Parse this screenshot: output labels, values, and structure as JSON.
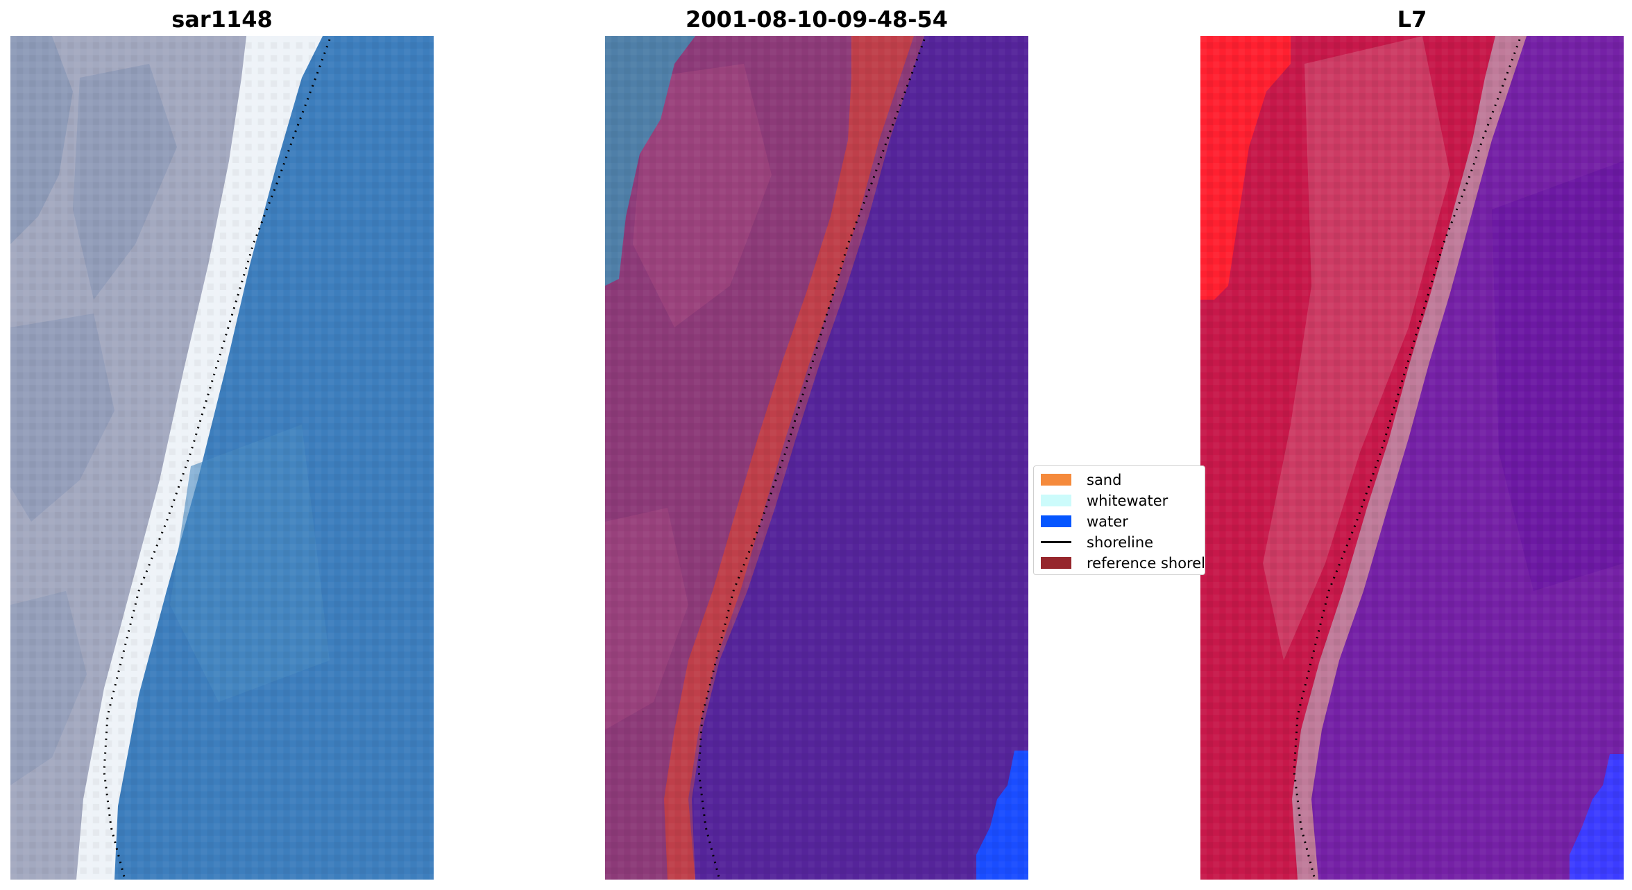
{
  "panels": [
    {
      "title": "sar1148",
      "colors": {
        "land": "#a3a9c0",
        "land_dark": "#7e8fb1",
        "whitewater": "#eef3f8",
        "water": "#3d7ebd",
        "water_tint": "#4a8ac2"
      }
    },
    {
      "title": "2001-08-10-09-48-54",
      "colors": {
        "land": "#8c3a78",
        "land_light": "#a3477f",
        "sand_class": "#bf3f4a",
        "water_class": "#55249a",
        "water_edge": "#1a4dff",
        "corner": "#4f7fa8"
      }
    },
    {
      "title": "L7",
      "colors": {
        "land_red": "#ff2030",
        "land": "#c7184a",
        "land_light": "#d04a6f",
        "beach": "#c07b9a",
        "water": "#7521a6",
        "water_dark": "#6414a0",
        "water_edge": "#3c3cff"
      }
    }
  ],
  "legend": {
    "entries": [
      {
        "label": "sand",
        "color": "#f58a3c",
        "icon": "swatch"
      },
      {
        "label": "whitewater",
        "color": "#ccfbfb",
        "icon": "swatch"
      },
      {
        "label": "water",
        "color": "#0556ff",
        "icon": "swatch"
      },
      {
        "label": "shoreline",
        "color": "#000000",
        "icon": "line"
      },
      {
        "label": "reference shoreline",
        "color": "#96262c",
        "icon": "swatch"
      }
    ]
  }
}
